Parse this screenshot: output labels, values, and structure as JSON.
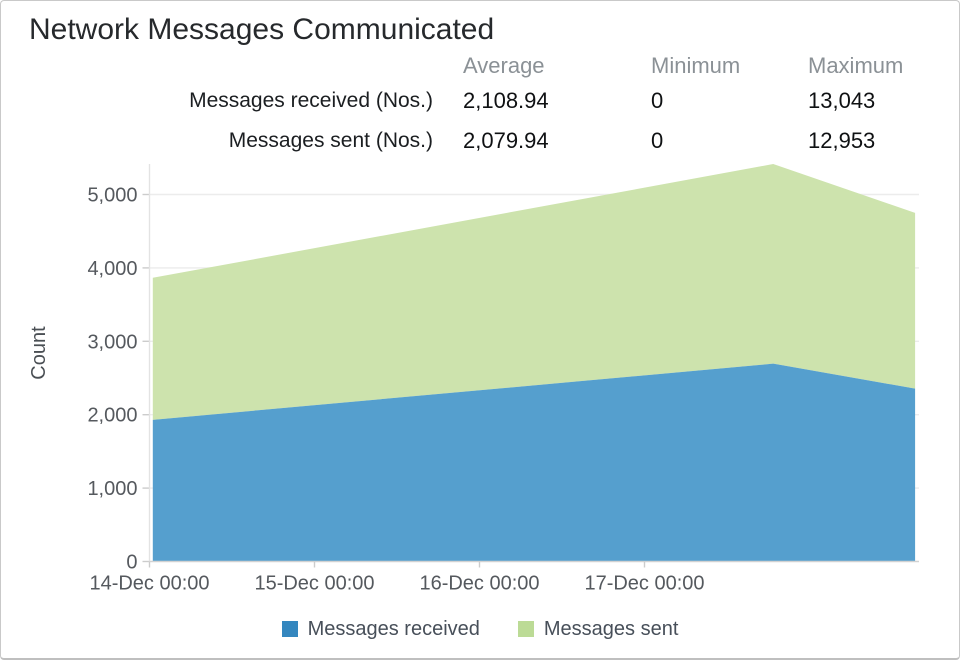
{
  "title": "Network Messages Communicated",
  "stats": {
    "columns": [
      "Average",
      "Minimum",
      "Maximum"
    ],
    "rows": [
      {
        "label": "Messages received (Nos.)",
        "average": "2,108.94",
        "minimum": "0",
        "maximum": "13,043"
      },
      {
        "label": "Messages sent (Nos.)",
        "average": "2,079.94",
        "minimum": "0",
        "maximum": "12,953"
      }
    ]
  },
  "chart_data": {
    "type": "area",
    "stacked": true,
    "title": "Network Messages Communicated",
    "xlabel": "",
    "ylabel": "Count",
    "ylim": [
      0,
      5450
    ],
    "y_ticks": [
      0,
      1000,
      2000,
      3000,
      4000,
      5000
    ],
    "x_ticks": [
      {
        "label": "14-Dec 00:00",
        "day": 0
      },
      {
        "label": "15-Dec 00:00",
        "day": 1
      },
      {
        "label": "16-Dec 00:00",
        "day": 2
      },
      {
        "label": "17-Dec 00:00",
        "day": 3
      }
    ],
    "x_range_days": [
      0.02,
      4.64
    ],
    "grid": "horizontal-only",
    "legend_position": "bottom",
    "series": [
      {
        "name": "Messages received",
        "color": "#3487bf",
        "fill": "#559fce",
        "points": [
          {
            "x_days": 0.02,
            "value": 1930
          },
          {
            "x_days": 3.78,
            "value": 2695
          },
          {
            "x_days": 4.64,
            "value": 2355
          }
        ]
      },
      {
        "name": "Messages sent",
        "color": "#bcdb96",
        "fill": "#cde3ad",
        "points": [
          {
            "x_days": 0.02,
            "value": 1935
          },
          {
            "x_days": 3.78,
            "value": 2720
          },
          {
            "x_days": 4.64,
            "value": 2395
          }
        ]
      }
    ]
  }
}
